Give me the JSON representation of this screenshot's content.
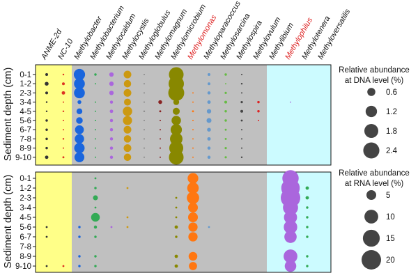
{
  "chart_data": {
    "type": "bubble-matrix",
    "taxa": [
      "ANME-2d",
      "NC-10",
      "Methylobacter",
      "Methylobacterium",
      "Methylocaldum",
      "Methylocystis",
      "Methyloglobulus",
      "Methylomagnum",
      "Methylomicrobium",
      "Methylomonas",
      "Methyloparacoccus",
      "Methylosarcina",
      "Methylospira",
      "Methylovulum",
      "Methylibium",
      "Methylophilus",
      "Methylotenera",
      "Methyloversatilis"
    ],
    "highlighted_taxa": [
      "Methylomonas",
      "Methylophilus"
    ],
    "depths": [
      "0-1",
      "1-2",
      "2-3",
      "3-4",
      "4-5",
      "5-6",
      "6-7",
      "7-8",
      "8-9",
      "9-10"
    ],
    "ylabel": "Sediment depth (cm)",
    "colors": {
      "anme_nc10": "#ffff88",
      "type_i_ii": "#c0c0c0",
      "methylotrophs": "#ccfbff",
      "highlight_label": "#dd2222"
    },
    "panels": [
      {
        "name": "DNA",
        "legend_title_1": "Relative abundance",
        "legend_title_2": "at DNA level (%)",
        "legend_values": [
          0.6,
          1.2,
          1.8,
          2.4
        ],
        "legend_labels": [
          "0.6",
          "1.2",
          "1.8",
          "2.4"
        ],
        "max_value": 2.4,
        "series": [
          {
            "taxon": "ANME-2d",
            "color": "#333333",
            "values": [
              0.08,
              0.15,
              0.08,
              0.03,
              0.03,
              0.06,
              0.06,
              0.06,
              0.06,
              0.12
            ]
          },
          {
            "taxon": "NC-10",
            "color": "#dd3322",
            "values": [
              0.03,
              0.08,
              0.12,
              0.02,
              0.03,
              0.02,
              0.02,
              0.03,
              0.02,
              0.04
            ]
          },
          {
            "taxon": "Methylobacter",
            "color": "#1a66dd",
            "values": [
              1.3,
              1.2,
              1.2,
              0.15,
              0.35,
              0.45,
              0.8,
              0.9,
              1.1,
              1.0
            ]
          },
          {
            "taxon": "Methylobacterium",
            "color": "#33aa55",
            "values": [
              0.06,
              0.02,
              0.0,
              0.02,
              0.02,
              0.02,
              0.02,
              0.02,
              0.02,
              0.02
            ]
          },
          {
            "taxon": "Methylocaldum",
            "color": "#aa66dd",
            "values": [
              0.2,
              0.2,
              0.2,
              0.1,
              0.12,
              0.1,
              0.1,
              0.1,
              0.1,
              0.1
            ]
          },
          {
            "taxon": "Methylocystis",
            "color": "#cc9911",
            "values": [
              0.6,
              0.55,
              0.6,
              0.5,
              0.9,
              0.85,
              0.6,
              0.55,
              0.6,
              0.55
            ]
          },
          {
            "taxon": "Methyloglobulus",
            "color": "#888888",
            "values": [
              0.02,
              0.02,
              0.02,
              0.02,
              0.03,
              0.02,
              0.02,
              0.02,
              0.02,
              0.02
            ]
          },
          {
            "taxon": "Methylomagnum",
            "color": "#882222",
            "values": [
              0.0,
              0.0,
              0.0,
              0.15,
              0.04,
              0.02,
              0.02,
              0.02,
              0.02,
              0.02
            ]
          },
          {
            "taxon": "Methylomicrobium",
            "color": "#888800",
            "values": [
              2.2,
              2.4,
              2.6,
              0.35,
              0.5,
              0.9,
              1.3,
              1.6,
              2.0,
              2.2
            ]
          },
          {
            "taxon": "Methylomonas",
            "color": "#ff7711",
            "values": [
              0.0,
              0.0,
              0.02,
              0.02,
              0.04,
              0.02,
              0.02,
              0.02,
              0.02,
              0.02
            ]
          },
          {
            "taxon": "Methyloparacoccus",
            "color": "#6699cc",
            "values": [
              0.08,
              0.08,
              0.1,
              0.12,
              0.2,
              0.25,
              0.15,
              0.12,
              0.1,
              0.1
            ]
          },
          {
            "taxon": "Methylosarcina",
            "color": "#66bb44",
            "values": [
              0.06,
              0.02,
              0.05,
              0.08,
              0.06,
              0.06,
              0.04,
              0.04,
              0.05,
              0.05
            ]
          },
          {
            "taxon": "Methylospira",
            "color": "#444444",
            "values": [
              0.02,
              0.03,
              0.02,
              0.05,
              0.08,
              0.04,
              0.02,
              0.02,
              0.02,
              0.03
            ]
          },
          {
            "taxon": "Methylovulum",
            "color": "#dd2222",
            "values": [
              0.0,
              0.0,
              0.0,
              0.06,
              0.06,
              0.02,
              0.0,
              0.0,
              0.0,
              0.0
            ]
          },
          {
            "taxon": "Methylophilus",
            "color": "#aa66dd",
            "values": [
              0.0,
              0.0,
              0.0,
              0.01,
              0.0,
              0.0,
              0.0,
              0.0,
              0.0,
              0.0
            ]
          }
        ]
      },
      {
        "name": "RNA",
        "legend_title_1": "Relative abundance",
        "legend_title_2": "at RNA level (%)",
        "legend_values": [
          5,
          10,
          15,
          20
        ],
        "legend_labels": [
          "5",
          "10",
          "15",
          "20"
        ],
        "max_value": 20,
        "series": [
          {
            "taxon": "ANME-2d",
            "color": "#333333",
            "values": [
              0.0,
              0.0,
              0.0,
              0.0,
              0.0,
              0.2,
              0.2,
              0.0,
              0.0,
              0.2
            ]
          },
          {
            "taxon": "NC-10",
            "color": "#dd3322",
            "values": [
              0.0,
              0.0,
              0.0,
              0.0,
              0.0,
              0.0,
              0.0,
              0.0,
              0.0,
              0.2
            ]
          },
          {
            "taxon": "Methylobacter",
            "color": "#1a66dd",
            "values": [
              0.0,
              0.0,
              0.0,
              0.0,
              0.0,
              0.3,
              0.3,
              0.0,
              0.3,
              0.3
            ]
          },
          {
            "taxon": "Methylobacterium",
            "color": "#33aa55",
            "values": [
              0.2,
              0.3,
              1.3,
              0.2,
              4.0,
              0.5,
              0.3,
              0.0,
              0.3,
              0.3
            ]
          },
          {
            "taxon": "Methylocaldum",
            "color": "#aa66dd",
            "values": [
              0.0,
              0.0,
              0.0,
              0.0,
              0.0,
              0.2,
              0.0,
              0.0,
              0.0,
              0.0
            ]
          },
          {
            "taxon": "Methylocystis",
            "color": "#cc9911",
            "values": [
              0.0,
              0.2,
              0.0,
              0.0,
              0.2,
              0.2,
              0.0,
              0.0,
              0.0,
              0.0
            ]
          },
          {
            "taxon": "Methylomagnum",
            "color": "#888800",
            "values": [
              0.0,
              0.0,
              0.0,
              0.0,
              0.0,
              0.0,
              0.0,
              0.0,
              0.0,
              0.0
            ]
          },
          {
            "taxon": "Methylomicrobium",
            "color": "#888800",
            "values": [
              0.0,
              0.0,
              0.2,
              0.2,
              0.2,
              0.6,
              0.3,
              0.0,
              0.6,
              0.6
            ]
          },
          {
            "taxon": "Methylomonas",
            "color": "#ff7711",
            "values": [
              6.0,
              7.0,
              8.0,
              5.0,
              5.0,
              4.5,
              4.5,
              0.0,
              4.0,
              3.5
            ]
          },
          {
            "taxon": "Methyloparacoccus",
            "color": "#6699cc",
            "values": [
              0.0,
              0.0,
              0.0,
              0.0,
              0.0,
              0.2,
              0.0,
              0.0,
              0.0,
              0.0
            ]
          },
          {
            "taxon": "Methylotenera",
            "color": "#33aa55",
            "values": [
              0.0,
              0.6,
              0.6,
              0.3,
              0.3,
              0.3,
              0.3,
              0.0,
              0.3,
              0.3
            ]
          },
          {
            "taxon": "Methylophilus",
            "color": "#aa66dd",
            "values": [
              14.0,
              18.0,
              20.0,
              12.0,
              9.0,
              9.5,
              8.0,
              0.0,
              10.0,
              7.0
            ]
          }
        ]
      }
    ]
  }
}
